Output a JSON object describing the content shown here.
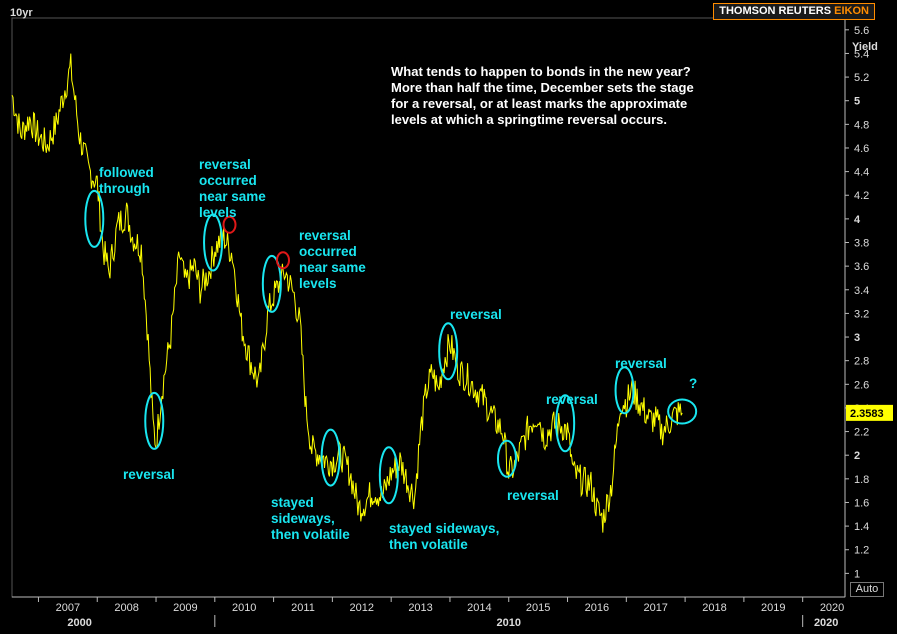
{
  "header": {
    "series_name": "10yr",
    "brand_main": "THOMSON REUTERS",
    "brand_accent": "EIKON"
  },
  "controls": {
    "auto_label": "Auto"
  },
  "commentary": [
    "What tends to happen to bonds in the new year?",
    "More than half the time, December sets the stage",
    "for a reversal, or at least marks the approximate",
    "levels at which a springtime reversal occurs."
  ],
  "annotations": [
    {
      "id": "followed-through",
      "lines": [
        "followed",
        "through"
      ]
    },
    {
      "id": "reversal-2009",
      "lines": [
        "reversal"
      ]
    },
    {
      "id": "reversal-2010",
      "lines": [
        "reversal",
        "occurred",
        "near same",
        "levels"
      ]
    },
    {
      "id": "reversal-2011",
      "lines": [
        "reversal",
        "occurred",
        "near same",
        "levels"
      ]
    },
    {
      "id": "sideways-2012",
      "lines": [
        "stayed",
        "sideways,",
        "then volatile"
      ]
    },
    {
      "id": "sideways-2013",
      "lines": [
        "stayed sideways,",
        "then volatile"
      ]
    },
    {
      "id": "reversal-2014",
      "lines": [
        "reversal"
      ]
    },
    {
      "id": "reversal-2015",
      "lines": [
        "reversal"
      ]
    },
    {
      "id": "reversal-2016",
      "lines": [
        "reversal"
      ]
    },
    {
      "id": "reversal-2017",
      "lines": [
        "reversal"
      ]
    },
    {
      "id": "question-2018",
      "lines": [
        "?"
      ]
    }
  ],
  "colors": {
    "background": "#000000",
    "line": "#ffff00",
    "annotation": "#19e6f0",
    "highlight_red": "#e01818",
    "last_price_bg": "#ffff00",
    "brand_accent": "#ff8c00"
  },
  "chart_data": {
    "type": "line",
    "title": "",
    "xlabel": "",
    "ylabel": "Yield",
    "series": [
      {
        "name": "10yr",
        "x": [
          2006.55,
          2006.7,
          2006.85,
          2007.0,
          2007.15,
          2007.3,
          2007.45,
          2007.55,
          2007.7,
          2007.85,
          2008.0,
          2008.1,
          2008.2,
          2008.35,
          2008.5,
          2008.6,
          2008.75,
          2008.85,
          2008.95,
          2009.0,
          2009.1,
          2009.25,
          2009.4,
          2009.5,
          2009.65,
          2009.75,
          2009.9,
          2010.0,
          2010.15,
          2010.3,
          2010.45,
          2010.6,
          2010.75,
          2010.9,
          2011.0,
          2011.1,
          2011.2,
          2011.35,
          2011.45,
          2011.55,
          2011.65,
          2011.8,
          2011.9,
          2012.0,
          2012.15,
          2012.3,
          2012.45,
          2012.55,
          2012.7,
          2012.85,
          2013.0,
          2013.15,
          2013.3,
          2013.4,
          2013.5,
          2013.6,
          2013.7,
          2013.8,
          2013.9,
          2014.0,
          2014.15,
          2014.3,
          2014.45,
          2014.6,
          2014.75,
          2014.9,
          2015.0,
          2015.1,
          2015.2,
          2015.35,
          2015.5,
          2015.6,
          2015.75,
          2015.9,
          2016.0,
          2016.1,
          2016.25,
          2016.4,
          2016.5,
          2016.6,
          2016.75,
          2016.85,
          2016.9,
          2017.0,
          2017.1,
          2017.25,
          2017.4,
          2017.5,
          2017.6,
          2017.7,
          2017.8,
          2017.9,
          2017.95
        ],
        "values": [
          5.05,
          4.72,
          4.85,
          4.7,
          4.62,
          4.8,
          5.1,
          5.28,
          4.7,
          4.42,
          4.3,
          3.75,
          3.55,
          3.95,
          4.05,
          3.85,
          3.75,
          3.1,
          2.25,
          2.1,
          2.55,
          3.0,
          3.7,
          3.45,
          3.6,
          3.4,
          3.55,
          3.75,
          3.85,
          3.7,
          3.1,
          2.8,
          2.6,
          3.2,
          3.35,
          3.45,
          3.55,
          3.35,
          3.1,
          2.4,
          2.05,
          2.0,
          1.95,
          1.95,
          2.0,
          1.85,
          1.55,
          1.6,
          1.7,
          1.65,
          1.85,
          1.95,
          1.75,
          1.65,
          2.2,
          2.55,
          2.7,
          2.55,
          2.8,
          2.95,
          2.72,
          2.65,
          2.55,
          2.45,
          2.3,
          2.2,
          1.85,
          1.9,
          2.05,
          2.25,
          2.35,
          2.15,
          2.25,
          2.25,
          2.2,
          1.85,
          1.78,
          1.75,
          1.55,
          1.45,
          1.75,
          2.2,
          2.45,
          2.45,
          2.55,
          2.42,
          2.3,
          2.3,
          2.2,
          2.25,
          2.33,
          2.36,
          2.3583
        ]
      }
    ],
    "x_ticks": [
      "2007",
      "2008",
      "2009",
      "2010",
      "2011",
      "2012",
      "2013",
      "2014",
      "2015",
      "2016",
      "2017",
      "2018",
      "2019",
      "2020"
    ],
    "x_decades": [
      "2000",
      "2010",
      "2020"
    ],
    "x_decade_values": [
      2007.7,
      2015.0,
      2020.4
    ],
    "y_ticks": [
      1,
      1.2,
      1.4,
      1.6,
      1.8,
      2,
      2.2,
      2.4,
      2.6,
      2.8,
      3,
      3.2,
      3.4,
      3.6,
      3.8,
      4,
      4.2,
      4.4,
      4.6,
      4.8,
      5,
      5.2,
      5.4,
      5.6
    ],
    "y_bold_ticks": [
      2,
      3,
      4,
      5
    ],
    "xlim": [
      2006.55,
      2020.72
    ],
    "ylim": [
      0.8,
      5.7
    ],
    "last_value_label": "2.3583",
    "grid": false,
    "legend": "none",
    "highlight_ellipses": [
      {
        "x": 2007.95,
        "y": 4.0,
        "color": "cyan"
      },
      {
        "x": 2008.97,
        "y": 2.29,
        "color": "cyan"
      },
      {
        "x": 2009.97,
        "y": 3.8,
        "color": "cyan"
      },
      {
        "x": 2010.25,
        "y": 3.95,
        "color": "red"
      },
      {
        "x": 2010.97,
        "y": 3.45,
        "color": "cyan"
      },
      {
        "x": 2011.16,
        "y": 3.65,
        "color": "red"
      },
      {
        "x": 2011.97,
        "y": 1.98,
        "color": "cyan"
      },
      {
        "x": 2012.96,
        "y": 1.83,
        "color": "cyan"
      },
      {
        "x": 2013.97,
        "y": 2.88,
        "color": "cyan"
      },
      {
        "x": 2014.97,
        "y": 1.97,
        "color": "cyan"
      },
      {
        "x": 2015.96,
        "y": 2.27,
        "color": "cyan"
      },
      {
        "x": 2016.97,
        "y": 2.55,
        "color": "cyan"
      },
      {
        "x": 2017.95,
        "y": 2.37,
        "color": "cyan"
      }
    ]
  }
}
